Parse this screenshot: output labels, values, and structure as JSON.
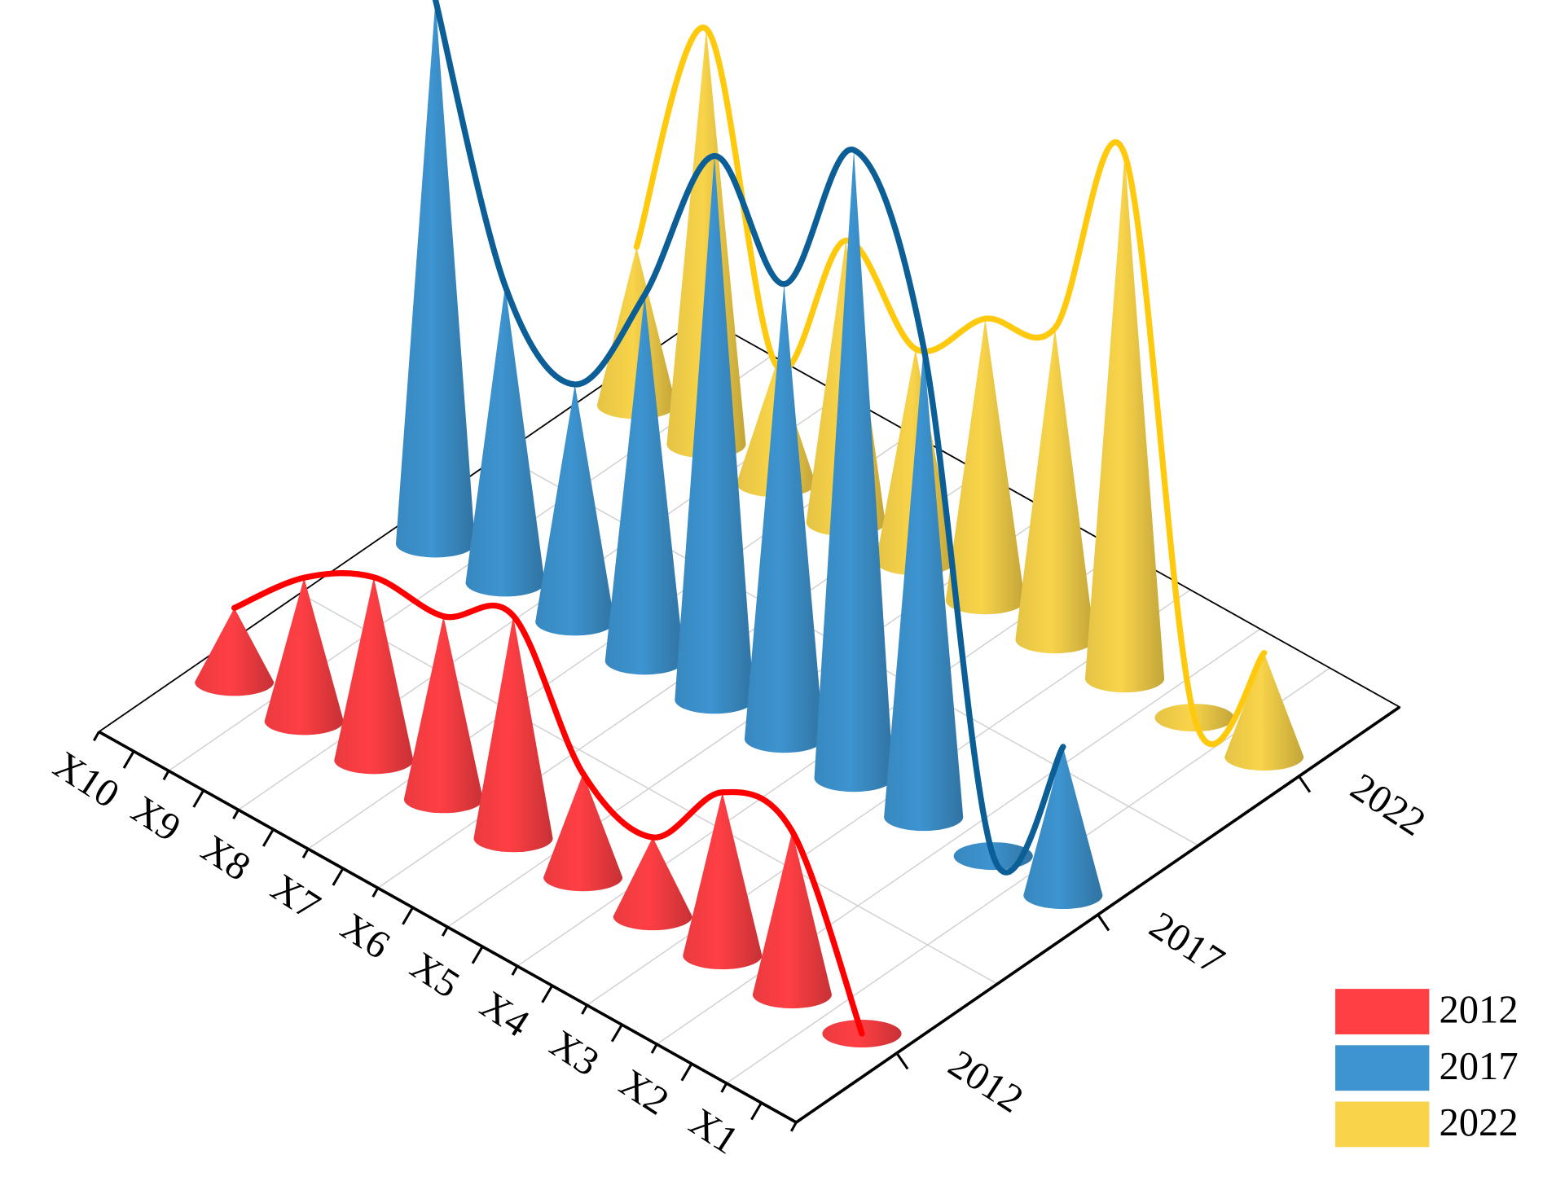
{
  "chart_data": {
    "type": "cone",
    "categories": [
      "X1",
      "X2",
      "X3",
      "X4",
      "X5",
      "X6",
      "X7",
      "X8",
      "X9",
      "X10"
    ],
    "series": [
      {
        "name": "2012",
        "color": "#ff3f44",
        "line_color": "#ff0000",
        "values": [
          0,
          6.6,
          6.6,
          3.2,
          4.2,
          9,
          7.4,
          7.4,
          5.8,
          3
        ]
      },
      {
        "name": "2017",
        "color": "#3d94d0",
        "line_color": "#0b5e96",
        "values": [
          6,
          0,
          19,
          25.4,
          18.4,
          22,
          14.8,
          9.6,
          12,
          22
        ]
      },
      {
        "name": "2022",
        "color": "#f9d44a",
        "line_color": "#ffc90e",
        "values": [
          4.2,
          0,
          21.2,
          12.6,
          11.4,
          8.6,
          11.4,
          4.8,
          16.8,
          6.4
        ]
      }
    ],
    "grid": true,
    "legend": "lower right"
  }
}
